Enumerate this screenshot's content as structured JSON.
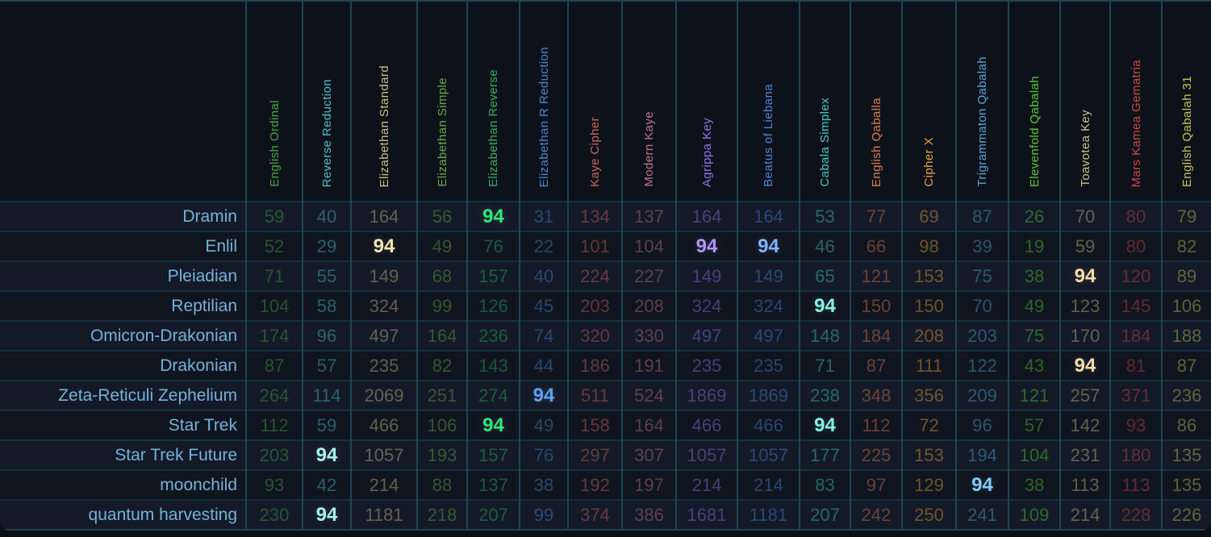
{
  "colors": {
    "background": "#0b1016",
    "grid_vertical": "#1d4553",
    "grid_horizontal": "#14303d",
    "row_label": "#74b3d8",
    "stripe_odd": "#131927",
    "stripe_even": "#0f141e"
  },
  "table": {
    "row_label_header": "",
    "columns": [
      {
        "label": "English Ordinal",
        "color": "#46a546",
        "bright": "#6ee06e"
      },
      {
        "label": "Reverse Reduction",
        "color": "#4cc2cc",
        "bright": "#a8f2ea"
      },
      {
        "label": "Elizabethan Standard",
        "color": "#cec083",
        "bright": "#f4e4b0"
      },
      {
        "label": "Elizabethan Simple",
        "color": "#69aa45",
        "bright": "#90e066"
      },
      {
        "label": "Elizabethan Reverse",
        "color": "#30b264",
        "bright": "#2ee878"
      },
      {
        "label": "Elizabethan R Reduction",
        "color": "#4a87cf",
        "bright": "#5ba3ff"
      },
      {
        "label": "Kaye Cipher",
        "color": "#cf675c",
        "bright": "#ff8e7e"
      },
      {
        "label": "Modern Kaye",
        "color": "#c37486",
        "bright": "#f09cae"
      },
      {
        "label": "Agrippa Key",
        "color": "#9174e5",
        "bright": "#b193ff"
      },
      {
        "label": "Beatus of Liebana",
        "color": "#4d87da",
        "bright": "#82b2ff"
      },
      {
        "label": "Cabala Simplex",
        "color": "#44cebe",
        "bright": "#80f4e6"
      },
      {
        "label": "English Qaballa",
        "color": "#dc7c51",
        "bright": "#ff9e70"
      },
      {
        "label": "Cipher X",
        "color": "#eaa33e",
        "bright": "#ffc560"
      },
      {
        "label": "Trigrammaton Qabalah",
        "color": "#56a6d7",
        "bright": "#80ccf8"
      },
      {
        "label": "Elevenfold Qabalah",
        "color": "#59cc36",
        "bright": "#80ee58"
      },
      {
        "label": "Toavotea Key",
        "color": "#cfc083",
        "bright": "#f8dca6"
      },
      {
        "label": "Mars Kamea Gematria",
        "color": "#ca4a48",
        "bright": "#f4736f"
      },
      {
        "label": "English Qabalah 31",
        "color": "#c6c556",
        "bright": "#eae87c"
      }
    ],
    "rows": [
      {
        "label": "Dramin",
        "values": [
          59,
          40,
          164,
          56,
          94,
          31,
          134,
          137,
          164,
          164,
          53,
          77,
          69,
          87,
          26,
          70,
          80,
          79
        ],
        "highlights": [
          4
        ]
      },
      {
        "label": "Enlil",
        "values": [
          52,
          29,
          94,
          49,
          76,
          22,
          101,
          104,
          94,
          94,
          46,
          66,
          98,
          39,
          19,
          59,
          80,
          82
        ],
        "highlights": [
          2,
          8,
          9
        ]
      },
      {
        "label": "Pleiadian",
        "values": [
          71,
          55,
          149,
          68,
          157,
          40,
          224,
          227,
          149,
          149,
          65,
          121,
          153,
          75,
          38,
          94,
          120,
          89
        ],
        "highlights": [
          15
        ]
      },
      {
        "label": "Reptilian",
        "values": [
          104,
          58,
          324,
          99,
          126,
          45,
          203,
          208,
          324,
          324,
          94,
          150,
          150,
          70,
          49,
          123,
          145,
          106
        ],
        "highlights": [
          10
        ]
      },
      {
        "label": "Omicron-Drakonian",
        "values": [
          174,
          96,
          497,
          164,
          236,
          74,
          320,
          330,
          497,
          497,
          148,
          184,
          208,
          203,
          75,
          170,
          184,
          188
        ],
        "highlights": []
      },
      {
        "label": "Drakonian",
        "values": [
          87,
          57,
          235,
          82,
          143,
          44,
          186,
          191,
          235,
          235,
          71,
          87,
          111,
          122,
          43,
          94,
          81,
          87
        ],
        "highlights": [
          15
        ]
      },
      {
        "label": "Zeta-Reticuli Zephelium",
        "values": [
          264,
          114,
          2069,
          251,
          274,
          94,
          511,
          524,
          1869,
          1869,
          238,
          348,
          356,
          209,
          121,
          257,
          371,
          236
        ],
        "highlights": [
          5
        ]
      },
      {
        "label": "Star Trek",
        "values": [
          112,
          59,
          466,
          106,
          94,
          49,
          158,
          164,
          466,
          466,
          94,
          112,
          72,
          96,
          57,
          142,
          93,
          86
        ],
        "highlights": [
          4,
          10
        ]
      },
      {
        "label": "Star Trek Future",
        "values": [
          203,
          94,
          1057,
          193,
          157,
          76,
          297,
          307,
          1057,
          1057,
          177,
          225,
          153,
          194,
          104,
          231,
          180,
          135
        ],
        "highlights": [
          1
        ]
      },
      {
        "label": "moonchild",
        "values": [
          93,
          42,
          214,
          88,
          137,
          38,
          192,
          197,
          214,
          214,
          83,
          97,
          129,
          94,
          38,
          113,
          113,
          135
        ],
        "highlights": [
          13
        ]
      },
      {
        "label": "quantum harvesting",
        "values": [
          230,
          94,
          1181,
          218,
          207,
          99,
          374,
          386,
          1681,
          1181,
          207,
          242,
          250,
          241,
          109,
          214,
          228,
          226
        ],
        "highlights": [
          1
        ]
      }
    ]
  }
}
